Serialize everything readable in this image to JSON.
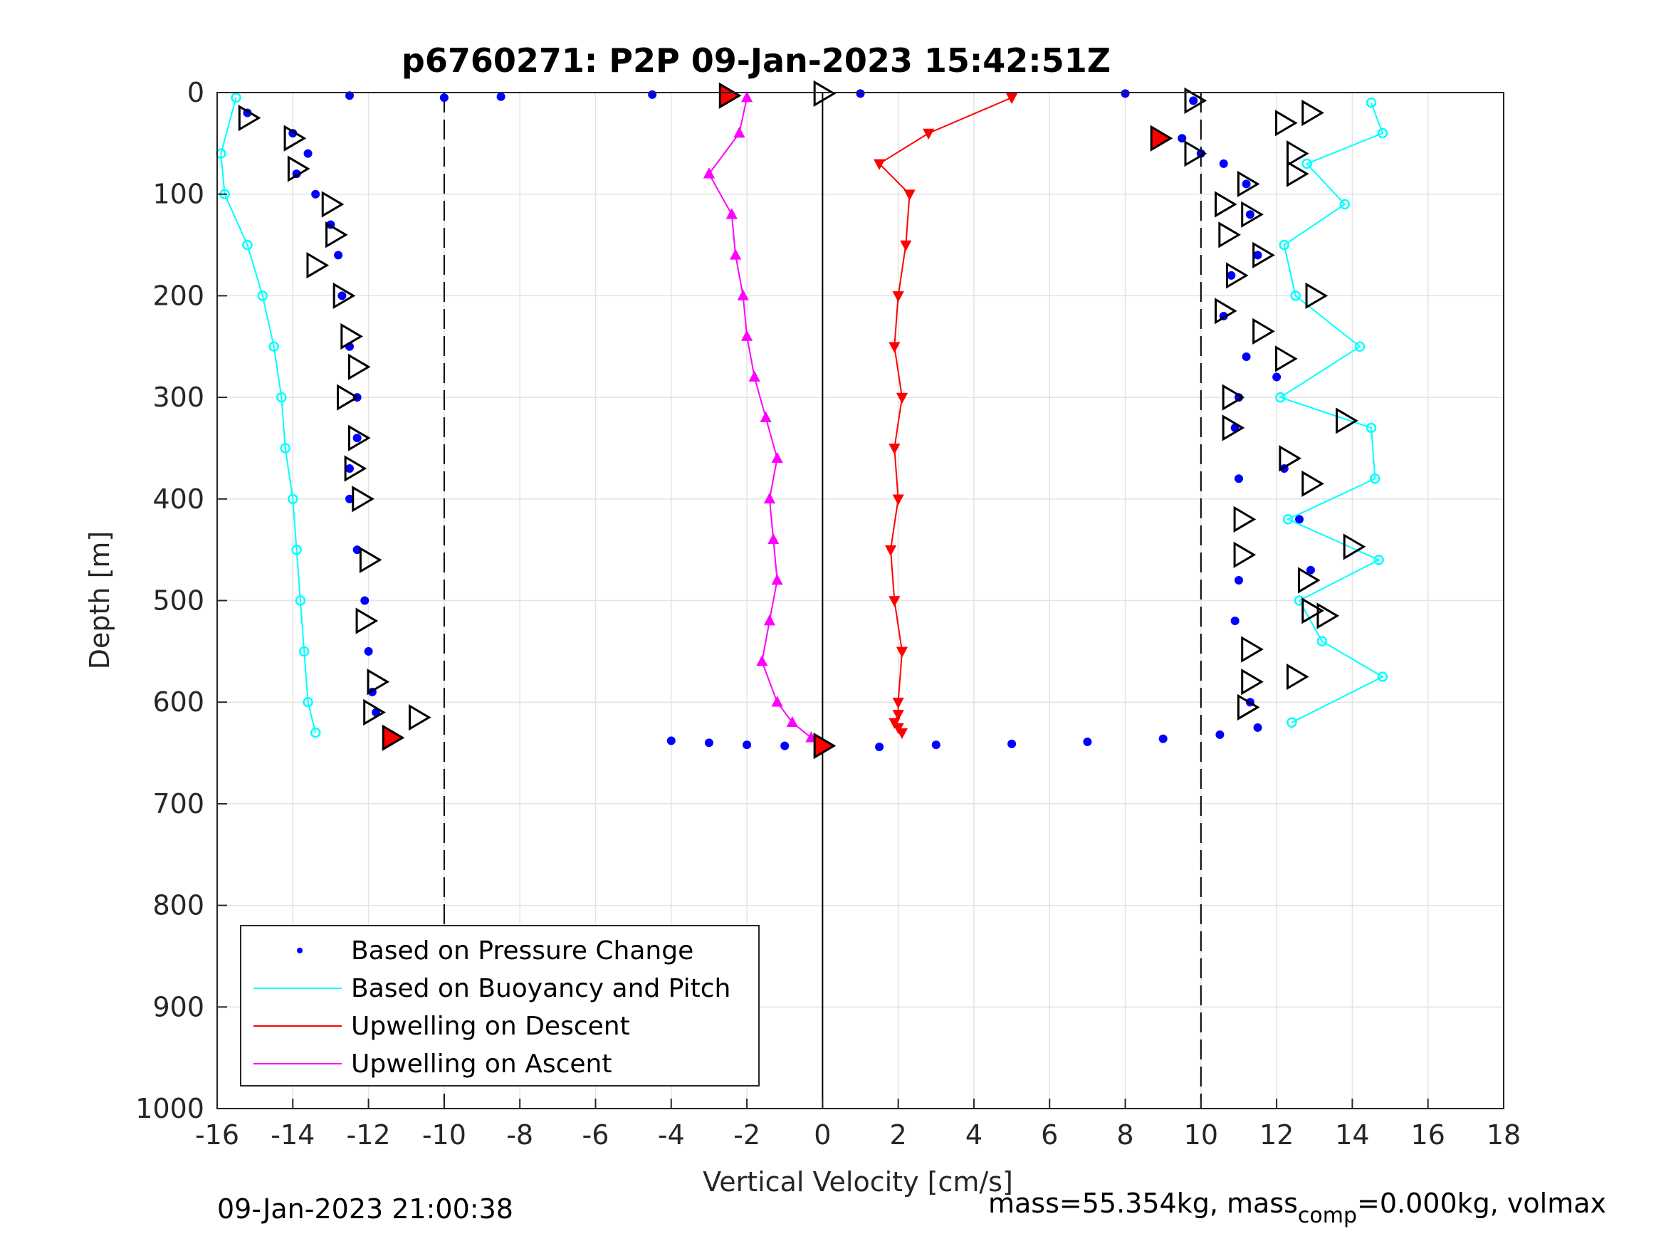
{
  "chart_data": {
    "type": "scatter",
    "title": "p6760271: P2P 09-Jan-2023 15:42:51Z",
    "xlabel": "Vertical Velocity [cm/s]",
    "ylabel": "Depth [m]",
    "xlim": [
      -16,
      18
    ],
    "ylim": [
      0,
      1000
    ],
    "y_reversed": true,
    "grid": true,
    "legend_position": "bottom-left",
    "xticks": [
      -16,
      -14,
      -12,
      -10,
      -8,
      -6,
      -4,
      -2,
      0,
      2,
      4,
      6,
      8,
      10,
      12,
      14,
      16,
      18
    ],
    "yticks": [
      0,
      100,
      200,
      300,
      400,
      500,
      600,
      700,
      800,
      900,
      1000
    ],
    "reference_lines": [
      {
        "x": -10,
        "style": "dashed"
      },
      {
        "x": 0,
        "style": "solid"
      },
      {
        "x": 10,
        "style": "dashed"
      }
    ],
    "series": [
      {
        "name": "Based on Pressure Change",
        "color": "#0000ff",
        "marker": "dot",
        "profiles": [
          {
            "x": [
              -15.2,
              -14.0,
              -13.6,
              -13.9,
              -13.4,
              -13.0,
              -12.8,
              -12.7,
              -12.5,
              -12.3,
              -12.3,
              -12.5,
              -12.5,
              -12.3,
              -12.1,
              -12.0,
              -11.9,
              -11.8,
              -11.5
            ],
            "y": [
              20,
              40,
              60,
              80,
              100,
              130,
              160,
              200,
              250,
              300,
              340,
              370,
              400,
              450,
              500,
              550,
              590,
              610,
              630
            ]
          },
          {
            "x": [
              9.5,
              10.0,
              10.6,
              11.2,
              11.3,
              11.5,
              10.8,
              10.6,
              11.2,
              12.0,
              11.0,
              10.9,
              12.2,
              11.0,
              12.6,
              12.9,
              11.0,
              10.9,
              11.3,
              11.5
            ],
            "y": [
              45,
              60,
              70,
              90,
              120,
              160,
              180,
              220,
              260,
              280,
              300,
              330,
              370,
              380,
              420,
              470,
              480,
              520,
              600,
              625
            ]
          },
          {
            "x": [
              -4.0,
              -3.0,
              -2.0,
              -1.0,
              0.0,
              1.5,
              3.0,
              5.0,
              7.0,
              9.0,
              10.5
            ],
            "y": [
              638,
              640,
              642,
              643,
              644,
              644,
              642,
              641,
              639,
              636,
              632
            ]
          },
          {
            "x": [
              -12.5,
              -10.0,
              -8.5,
              -4.5,
              -2.5,
              1.0,
              8.0,
              9.8
            ],
            "y": [
              3,
              5,
              4,
              2,
              2,
              1,
              1,
              8
            ]
          }
        ]
      },
      {
        "name": "Based on Buoyancy and Pitch",
        "color": "#00ffff",
        "marker": "circle-line",
        "profiles": [
          {
            "x": [
              -15.5,
              -15.9,
              -15.8,
              -15.2,
              -14.8,
              -14.5,
              -14.3,
              -14.2,
              -14.0,
              -13.9,
              -13.8,
              -13.7,
              -13.6,
              -13.4
            ],
            "y": [
              5,
              60,
              100,
              150,
              200,
              250,
              300,
              350,
              400,
              450,
              500,
              550,
              600,
              630
            ]
          },
          {
            "x": [
              14.5,
              14.8,
              12.8,
              13.8,
              12.2,
              12.5,
              14.2,
              12.1,
              14.5,
              14.6,
              12.3,
              14.7,
              12.6,
              13.2,
              14.8,
              12.4
            ],
            "y": [
              10,
              40,
              70,
              110,
              150,
              200,
              250,
              300,
              330,
              380,
              420,
              460,
              500,
              540,
              575,
              620
            ]
          }
        ]
      },
      {
        "name": "Upwelling on Descent",
        "color": "#ff0000",
        "marker": "triangle-down",
        "x": [
          5.0,
          2.8,
          1.5,
          2.3,
          2.2,
          2.0,
          1.9,
          2.1,
          1.9,
          2.0,
          1.8,
          1.9,
          2.1,
          2.0,
          2.0,
          1.9,
          2.0,
          2.1
        ],
        "y": [
          5,
          40,
          70,
          100,
          150,
          200,
          250,
          300,
          350,
          400,
          450,
          500,
          550,
          600,
          612,
          620,
          625,
          630
        ]
      },
      {
        "name": "Upwelling on Ascent",
        "color": "#ff00ff",
        "marker": "triangle-up",
        "x": [
          -2.0,
          -2.2,
          -3.0,
          -2.4,
          -2.3,
          -2.1,
          -2.0,
          -1.8,
          -1.5,
          -1.2,
          -1.4,
          -1.3,
          -1.2,
          -1.4,
          -1.6,
          -1.2,
          -0.8,
          -0.3
        ],
        "y": [
          5,
          40,
          80,
          120,
          160,
          200,
          240,
          280,
          320,
          360,
          400,
          440,
          480,
          520,
          560,
          600,
          620,
          635
        ]
      }
    ],
    "direction_markers": [
      {
        "x": -15.2,
        "y": 25
      },
      {
        "x": -14.0,
        "y": 45
      },
      {
        "x": -13.9,
        "y": 75
      },
      {
        "x": -13.0,
        "y": 110
      },
      {
        "x": -12.9,
        "y": 140
      },
      {
        "x": -13.4,
        "y": 170
      },
      {
        "x": -12.7,
        "y": 200
      },
      {
        "x": -12.5,
        "y": 240
      },
      {
        "x": -12.3,
        "y": 270
      },
      {
        "x": -12.6,
        "y": 300
      },
      {
        "x": -12.3,
        "y": 340
      },
      {
        "x": -12.4,
        "y": 370
      },
      {
        "x": -12.2,
        "y": 400
      },
      {
        "x": -12.0,
        "y": 460
      },
      {
        "x": -12.1,
        "y": 520
      },
      {
        "x": -11.8,
        "y": 580
      },
      {
        "x": -11.9,
        "y": 610
      },
      {
        "x": -10.7,
        "y": 615
      },
      {
        "x": -11.4,
        "y": 635,
        "fill": "#ff0000"
      },
      {
        "x": -2.5,
        "y": 3,
        "fill": "#ff0000"
      },
      {
        "x": 0.0,
        "y": 1
      },
      {
        "x": 9.8,
        "y": 8
      },
      {
        "x": 8.9,
        "y": 45,
        "fill": "#ff0000"
      },
      {
        "x": 9.8,
        "y": 60
      },
      {
        "x": 12.9,
        "y": 20
      },
      {
        "x": 12.2,
        "y": 30
      },
      {
        "x": 12.5,
        "y": 60
      },
      {
        "x": 12.5,
        "y": 80
      },
      {
        "x": 11.2,
        "y": 90
      },
      {
        "x": 10.6,
        "y": 110
      },
      {
        "x": 11.3,
        "y": 120
      },
      {
        "x": 10.7,
        "y": 140
      },
      {
        "x": 11.6,
        "y": 160
      },
      {
        "x": 10.9,
        "y": 180
      },
      {
        "x": 13.0,
        "y": 200
      },
      {
        "x": 10.6,
        "y": 215
      },
      {
        "x": 11.6,
        "y": 235
      },
      {
        "x": 12.2,
        "y": 262
      },
      {
        "x": 10.8,
        "y": 300
      },
      {
        "x": 13.8,
        "y": 323
      },
      {
        "x": 10.8,
        "y": 330
      },
      {
        "x": 12.3,
        "y": 360
      },
      {
        "x": 12.9,
        "y": 385
      },
      {
        "x": 11.1,
        "y": 420
      },
      {
        "x": 11.1,
        "y": 455
      },
      {
        "x": 14.0,
        "y": 447
      },
      {
        "x": 12.8,
        "y": 480
      },
      {
        "x": 13.3,
        "y": 515
      },
      {
        "x": 12.9,
        "y": 510
      },
      {
        "x": 11.3,
        "y": 548
      },
      {
        "x": 12.5,
        "y": 575
      },
      {
        "x": 11.3,
        "y": 580
      },
      {
        "x": 11.2,
        "y": 605
      },
      {
        "x": 0.0,
        "y": 643,
        "fill": "#ff0000"
      }
    ]
  },
  "legend": {
    "items": [
      {
        "label": "Based on Pressure Change",
        "color": "#0000ff",
        "kind": "dot"
      },
      {
        "label": "Based on Buoyancy and Pitch",
        "color": "#00ffff",
        "kind": "line"
      },
      {
        "label": "Upwelling on Descent",
        "color": "#ff0000",
        "kind": "line"
      },
      {
        "label": "Upwelling on Ascent",
        "color": "#ff00ff",
        "kind": "line"
      }
    ]
  },
  "footer": {
    "timestamp": "09-Jan-2023 21:00:38",
    "mass_prefix": "mass=55.354kg, mass",
    "mass_sub": "comp",
    "mass_suffix": "=0.000kg, volmax"
  }
}
